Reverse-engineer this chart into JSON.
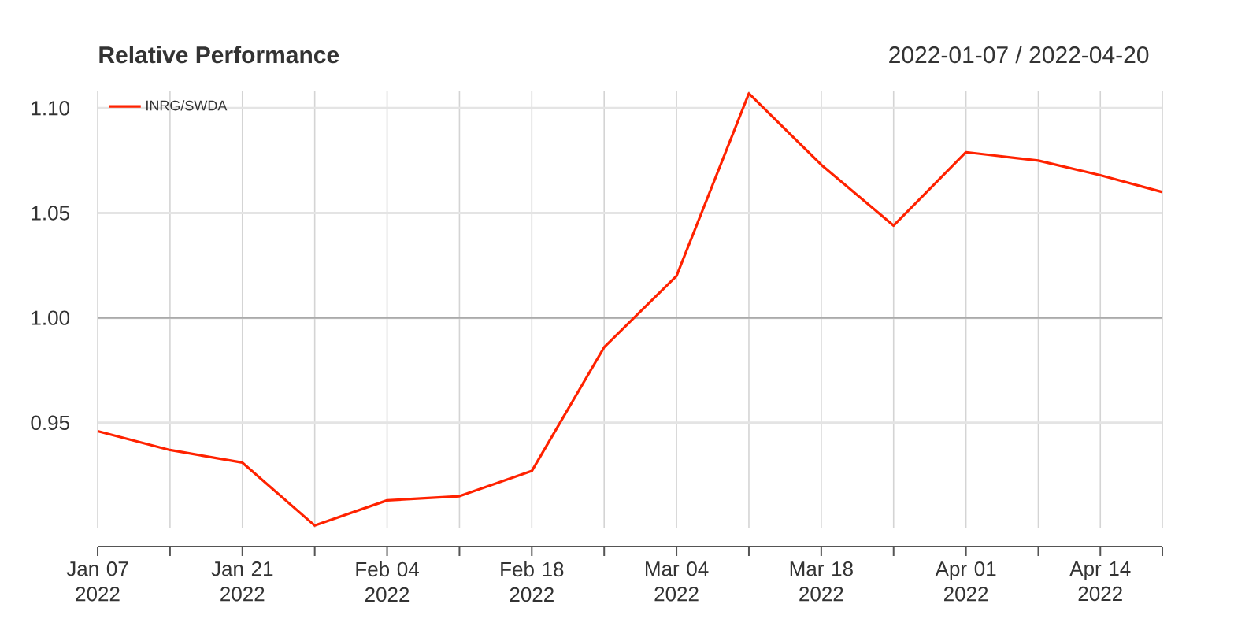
{
  "chart_data": {
    "type": "line",
    "title": "Relative Performance",
    "subtitle": "2022-01-07 / 2022-04-20",
    "x": [
      "2022-01-07",
      "2022-01-14",
      "2022-01-21",
      "2022-01-28",
      "2022-02-04",
      "2022-02-11",
      "2022-02-18",
      "2022-02-25",
      "2022-03-04",
      "2022-03-11",
      "2022-03-18",
      "2022-03-25",
      "2022-04-01",
      "2022-04-08",
      "2022-04-14",
      "2022-04-20"
    ],
    "series": [
      {
        "name": "INRG/SWDA",
        "color": "#ff2200",
        "values": [
          0.946,
          0.937,
          0.931,
          0.901,
          0.913,
          0.915,
          0.927,
          0.986,
          1.02,
          1.107,
          1.073,
          1.044,
          1.079,
          1.075,
          1.068,
          1.06
        ]
      }
    ],
    "xlim": [
      "2022-01-07",
      "2022-04-20"
    ],
    "xticks": [
      {
        "value": "2022-01-07",
        "label": "Jan 07 2022"
      },
      {
        "value": "2022-01-14",
        "label": null
      },
      {
        "value": "2022-01-21",
        "label": "Jan 21 2022"
      },
      {
        "value": "2022-01-28",
        "label": null
      },
      {
        "value": "2022-02-04",
        "label": "Feb 04 2022"
      },
      {
        "value": "2022-02-11",
        "label": null
      },
      {
        "value": "2022-02-18",
        "label": "Feb 18 2022"
      },
      {
        "value": "2022-02-25",
        "label": null
      },
      {
        "value": "2022-03-04",
        "label": "Mar 04 2022"
      },
      {
        "value": "2022-03-11",
        "label": null
      },
      {
        "value": "2022-03-18",
        "label": "Mar 18 2022"
      },
      {
        "value": "2022-03-25",
        "label": null
      },
      {
        "value": "2022-04-01",
        "label": "Apr 01 2022"
      },
      {
        "value": "2022-04-08",
        "label": null
      },
      {
        "value": "2022-04-14",
        "label": "Apr 14 2022"
      },
      {
        "value": "2022-04-20",
        "label": null
      }
    ],
    "ylim": [
      0.9,
      1.108
    ],
    "yticks": [
      0.95,
      {
        "value": 1,
        "label": "1.00"
      },
      1.05,
      {
        "value": 1.1,
        "label": "1.10"
      }
    ],
    "ref_lines": [
      {
        "axis": "y",
        "value": 1,
        "color": "#aaaaaa"
      }
    ],
    "grid": true,
    "legend": "top left",
    "marker": "none",
    "line_style": "solid"
  }
}
